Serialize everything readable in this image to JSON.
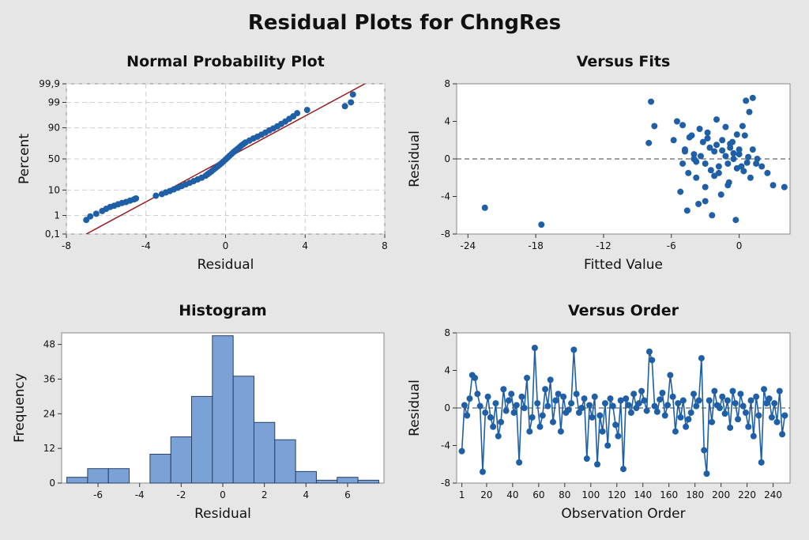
{
  "title": "Residual Plots for ChngRes",
  "colors": {
    "background": "#e6e6e6",
    "plot_bg": "#ffffff",
    "point": "#1f5fa6",
    "line": "#1f5fa6",
    "fit_line": "#9b1c1c",
    "hist_fill": "#7ba2d6",
    "hist_edge": "#2a3f66",
    "grid": "#cfcfcf",
    "ref_line": "#666666"
  },
  "chart_data": [
    {
      "type": "scatter",
      "title": "Normal Probability Plot",
      "xlabel": "Residual",
      "ylabel": "Percent",
      "xlim": [
        -8,
        8
      ],
      "y_scale": "normal-probability",
      "xticks": [
        -8,
        -4,
        0,
        4,
        8
      ],
      "yticks": [
        0.1,
        1,
        10,
        50,
        90,
        99,
        99.9
      ],
      "ytick_labels": [
        "0,1",
        "1",
        "10",
        "50",
        "90",
        "99",
        "99,9"
      ],
      "grid": true,
      "fit_line": {
        "x": [
          -7.0,
          7.0
        ],
        "percent": [
          0.1,
          99.9
        ]
      },
      "x": [
        -7.0,
        -6.8,
        -6.5,
        -6.2,
        -6.0,
        -5.8,
        -5.6,
        -5.4,
        -5.2,
        -5.0,
        -4.8,
        -4.6,
        -4.5,
        -3.5,
        -3.2,
        -3.0,
        -2.8,
        -2.6,
        -2.4,
        -2.2,
        -2.0,
        -1.8,
        -1.6,
        -1.4,
        -1.2,
        -1.0,
        -0.9,
        -0.8,
        -0.7,
        -0.6,
        -0.5,
        -0.4,
        -0.3,
        -0.2,
        -0.1,
        0.0,
        0.1,
        0.2,
        0.3,
        0.4,
        0.5,
        0.6,
        0.7,
        0.8,
        0.9,
        1.0,
        1.2,
        1.4,
        1.6,
        1.8,
        2.0,
        2.2,
        2.4,
        2.6,
        2.8,
        3.0,
        3.2,
        3.4,
        3.6,
        4.1,
        6.0,
        6.3,
        6.4
      ],
      "percent": [
        0.6,
        0.9,
        1.2,
        1.6,
        2.0,
        2.4,
        2.7,
        3.1,
        3.5,
        3.8,
        4.3,
        4.8,
        5.2,
        6.5,
        7.4,
        8.4,
        9.3,
        10.5,
        11.8,
        13.2,
        14.7,
        16.3,
        18.1,
        20.0,
        22.0,
        24.5,
        26.5,
        28.5,
        30.5,
        33.0,
        35.5,
        38.0,
        40.5,
        43.0,
        46.0,
        49.0,
        52.0,
        55.0,
        58.0,
        61.0,
        63.5,
        66.0,
        68.5,
        71.0,
        73.0,
        75.0,
        77.5,
        80.0,
        82.0,
        84.0,
        86.0,
        88.0,
        89.5,
        91.0,
        92.5,
        93.8,
        95.0,
        96.0,
        97.0,
        97.8,
        98.5,
        99.0,
        99.6
      ]
    },
    {
      "type": "scatter",
      "title": "Versus Fits",
      "xlabel": "Fitted Value",
      "ylabel": "Residual",
      "xlim": [
        -25,
        4.5
      ],
      "ylim": [
        -8,
        8
      ],
      "xticks": [
        -24,
        -18,
        -12,
        -6,
        0
      ],
      "yticks": [
        -8,
        -4,
        0,
        4,
        8
      ],
      "reference_line": 0,
      "x": [
        -22.5,
        -17.5,
        -8.0,
        -7.8,
        -7.5,
        -5.8,
        -5.5,
        -5.0,
        -4.8,
        -4.5,
        -4.2,
        -4.0,
        -3.8,
        -3.5,
        -3.2,
        -3.0,
        -2.8,
        -2.5,
        -2.2,
        -2.0,
        -1.8,
        -1.5,
        -1.2,
        -1.0,
        -0.8,
        -0.5,
        -0.2,
        0.0,
        0.3,
        0.6,
        0.9,
        1.2,
        1.5,
        2.0,
        2.5,
        3.0,
        4.0,
        -5.2,
        -4.6,
        -3.6,
        -3.0,
        -2.4,
        -1.6,
        -0.9,
        -0.3,
        0.5,
        1.0,
        -4.0,
        -2.8,
        -1.8,
        -0.6,
        0.2,
        -4.8,
        -3.4,
        -2.0,
        -1.0,
        0.0,
        0.8,
        -3.0,
        -1.2,
        -0.2,
        1.2,
        -5.0,
        -2.6,
        -0.5,
        0.4,
        -1.5,
        -4.4,
        -3.8,
        -2.2,
        -0.8,
        0.7,
        1.6
      ],
      "y": [
        -5.2,
        -7.0,
        1.7,
        6.1,
        3.5,
        2.0,
        4.0,
        3.6,
        1.0,
        -1.5,
        2.5,
        0.5,
        -2.0,
        3.2,
        1.8,
        -0.5,
        2.8,
        -1.2,
        0.8,
        1.5,
        -0.8,
        2.0,
        0.3,
        -0.5,
        1.2,
        0.0,
        -1.0,
        0.5,
        3.5,
        6.2,
        5.0,
        1.0,
        -0.5,
        -0.8,
        -1.5,
        -2.8,
        -3.0,
        -3.5,
        -5.5,
        -4.8,
        -4.5,
        -6.0,
        -3.8,
        -2.5,
        -6.5,
        2.5,
        -2.0,
        0.0,
        2.2,
        -1.5,
        1.8,
        -0.8,
        0.8,
        0.3,
        4.2,
        -2.8,
        1.0,
        0.2,
        -3.0,
        3.4,
        2.6,
        6.5,
        -0.5,
        1.2,
        0.6,
        -1.3,
        0.9,
        2.3,
        -0.3,
        -1.8,
        1.6,
        -0.4,
        0.0
      ]
    },
    {
      "type": "bar",
      "title": "Histogram",
      "xlabel": "Residual",
      "ylabel": "Frequency",
      "xlim": [
        -7.75,
        7.75
      ],
      "ylim": [
        0,
        52
      ],
      "xticks": [
        -6,
        -4,
        -2,
        0,
        2,
        4,
        6
      ],
      "yticks": [
        0,
        12,
        24,
        36,
        48
      ],
      "bin_width": 1,
      "bin_centers": [
        -7,
        -6,
        -5,
        -4,
        -3,
        -2,
        -1,
        0,
        1,
        2,
        3,
        4,
        5,
        6,
        7
      ],
      "values": [
        2,
        5,
        5,
        0,
        10,
        16,
        30,
        51,
        37,
        21,
        15,
        4,
        1,
        2,
        1
      ]
    },
    {
      "type": "line",
      "title": "Versus Order",
      "xlabel": "Observation Order",
      "ylabel": "Residual",
      "xlim": [
        -3,
        253
      ],
      "ylim": [
        -8,
        8
      ],
      "xticks": [
        1,
        20,
        40,
        60,
        80,
        100,
        120,
        140,
        160,
        180,
        200,
        220,
        240
      ],
      "yticks": [
        -8,
        -4,
        0,
        4,
        8
      ],
      "reference_line": 0,
      "markers": true,
      "x": [
        1,
        3,
        5,
        7,
        9,
        11,
        13,
        15,
        17,
        19,
        21,
        23,
        25,
        27,
        29,
        31,
        33,
        35,
        37,
        39,
        41,
        43,
        45,
        47,
        49,
        51,
        53,
        55,
        57,
        59,
        61,
        63,
        65,
        67,
        69,
        71,
        73,
        75,
        77,
        79,
        81,
        83,
        85,
        87,
        89,
        91,
        93,
        95,
        97,
        99,
        101,
        103,
        105,
        107,
        109,
        111,
        113,
        115,
        117,
        119,
        121,
        123,
        125,
        127,
        129,
        131,
        133,
        135,
        137,
        139,
        141,
        143,
        145,
        147,
        149,
        151,
        153,
        155,
        157,
        159,
        161,
        163,
        165,
        167,
        169,
        171,
        173,
        175,
        177,
        179,
        181,
        183,
        185,
        187,
        189,
        191,
        193,
        195,
        197,
        199,
        201,
        203,
        205,
        207,
        209,
        211,
        213,
        215,
        217,
        219,
        221,
        223,
        225,
        227,
        229,
        231,
        233,
        235,
        237,
        239,
        241,
        243,
        245,
        247,
        249
      ],
      "y": [
        -4.6,
        0.3,
        -0.8,
        1.0,
        3.5,
        3.2,
        1.5,
        0.2,
        -6.8,
        -0.5,
        1.2,
        -1.0,
        -2.0,
        0.5,
        -3.0,
        -1.5,
        2.0,
        -0.3,
        0.8,
        1.5,
        -0.5,
        0.3,
        -5.8,
        1.2,
        0.0,
        3.2,
        -2.5,
        -1.0,
        6.4,
        0.5,
        -2.0,
        -0.8,
        2.0,
        0.2,
        3.0,
        -1.5,
        0.8,
        1.5,
        -2.5,
        1.2,
        -0.5,
        -0.2,
        0.5,
        6.2,
        1.5,
        -0.5,
        0.0,
        1.0,
        -5.4,
        0.3,
        -1.0,
        1.2,
        -6.0,
        -0.8,
        -2.5,
        0.5,
        -4.0,
        1.0,
        0.2,
        -1.8,
        -3.0,
        0.8,
        -6.5,
        1.0,
        0.3,
        -0.5,
        1.5,
        0.0,
        0.5,
        1.8,
        0.8,
        -0.3,
        6.0,
        5.1,
        0.2,
        -0.4,
        0.9,
        1.6,
        -0.8,
        0.3,
        3.5,
        1.2,
        -2.5,
        0.5,
        -1.0,
        0.8,
        -2.0,
        -1.2,
        -0.5,
        1.5,
        0.2,
        0.8,
        5.3,
        -4.5,
        -7.0,
        0.8,
        -1.5,
        1.8,
        0.3,
        0.0,
        1.2,
        -0.6,
        0.8,
        -2.1,
        1.8,
        0.5,
        -1.2,
        1.5,
        0.2,
        -0.5,
        -2.0,
        0.8,
        -3.0,
        1.2,
        -0.8,
        -5.8,
        2.0,
        0.5,
        1.0,
        -1.0,
        0.5,
        -1.5,
        1.8,
        -2.8,
        -0.8
      ]
    }
  ]
}
